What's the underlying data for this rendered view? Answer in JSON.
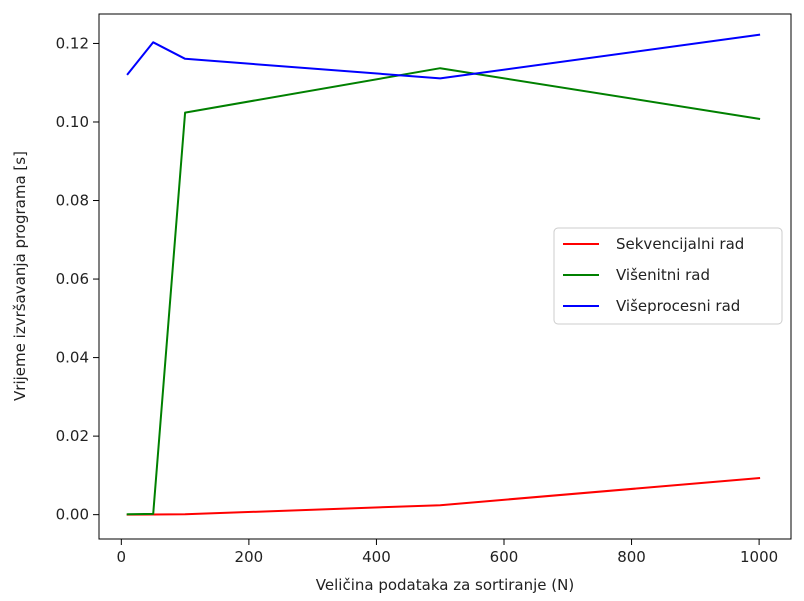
{
  "chart_data": {
    "type": "line",
    "title": "",
    "xlabel": "Veličina podataka za sortiranje (N)",
    "ylabel": "Vrijeme izvršavanja programa [s]",
    "xlim": [
      -35,
      1050
    ],
    "ylim": [
      -0.0062,
      0.1275
    ],
    "xticks": [
      0,
      200,
      400,
      600,
      800,
      1000
    ],
    "xtick_labels": [
      "0",
      "200",
      "400",
      "600",
      "800",
      "1000"
    ],
    "yticks": [
      0.0,
      0.02,
      0.04,
      0.06,
      0.08,
      0.1,
      0.12
    ],
    "ytick_labels": [
      "0.00",
      "0.02",
      "0.04",
      "0.06",
      "0.08",
      "0.10",
      "0.12"
    ],
    "grid": false,
    "legend_position": "center-right",
    "series": [
      {
        "name": "Sekvencijalni rad",
        "color": "#ff0000",
        "x": [
          10,
          50,
          100,
          500,
          1000
        ],
        "y": [
          1e-05,
          3e-05,
          0.0001,
          0.0024,
          0.0093
        ]
      },
      {
        "name": "Višenitni rad",
        "color": "#008000",
        "x": [
          10,
          50,
          100,
          500,
          1000
        ],
        "y": [
          0.0001,
          0.0002,
          0.1024,
          0.1137,
          0.1008
        ]
      },
      {
        "name": "Višeprocesni rad",
        "color": "#0000ff",
        "x": [
          10,
          50,
          100,
          500,
          1000
        ],
        "y": [
          0.1122,
          0.1203,
          0.1161,
          0.1111,
          0.1222
        ]
      }
    ]
  }
}
